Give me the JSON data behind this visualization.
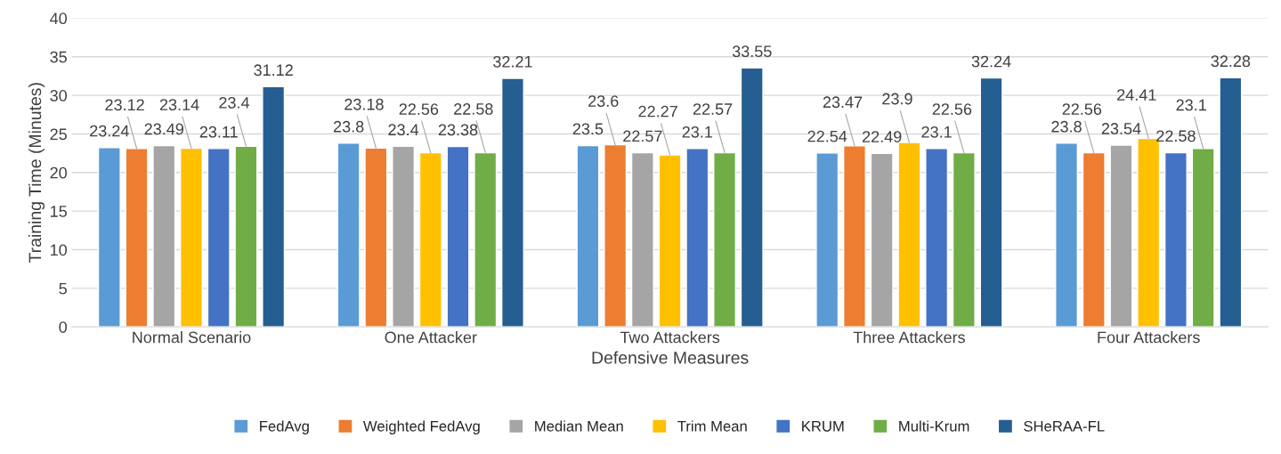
{
  "chart_data": {
    "type": "bar",
    "xlabel": "Defensive Measures",
    "ylabel": "Training Time (Minutes)",
    "categories": [
      "Normal Scenario",
      "One Attacker",
      "Two Attackers",
      "Three Attackers",
      "Four Attackers"
    ],
    "series": [
      {
        "name": "FedAvg",
        "color": "#5b9bd5",
        "values": [
          23.24,
          23.8,
          23.5,
          22.54,
          23.8
        ]
      },
      {
        "name": "Weighted FedAvg",
        "color": "#ed7d31",
        "values": [
          23.12,
          23.18,
          23.6,
          23.47,
          22.56
        ]
      },
      {
        "name": "Median Mean",
        "color": "#a5a5a5",
        "values": [
          23.49,
          23.4,
          22.57,
          22.49,
          23.54
        ]
      },
      {
        "name": "Trim Mean",
        "color": "#ffc000",
        "values": [
          23.14,
          22.56,
          22.27,
          23.9,
          24.41
        ]
      },
      {
        "name": "KRUM",
        "color": "#4472c4",
        "values": [
          23.11,
          23.38,
          23.1,
          23.1,
          22.58
        ]
      },
      {
        "name": "Multi-Krum",
        "color": "#70ad47",
        "values": [
          23.4,
          22.58,
          22.57,
          22.56,
          23.1
        ]
      },
      {
        "name": "SHeRAA-FL",
        "color": "#255e91",
        "values": [
          31.12,
          32.21,
          33.55,
          32.24,
          32.28
        ]
      }
    ],
    "ylim": [
      0,
      40
    ],
    "yticks": [
      0,
      5,
      10,
      15,
      20,
      25,
      30,
      35,
      40
    ],
    "grid": "y",
    "legend": "bottom",
    "data_labels": true
  }
}
